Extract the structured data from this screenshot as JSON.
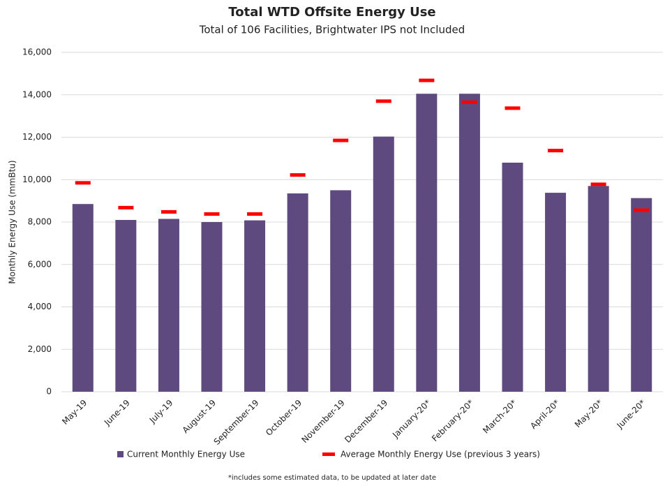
{
  "chart_data": {
    "type": "bar",
    "title": "Total WTD Offsite Energy Use",
    "subtitle": "Total of 106 Facilities, Brightwater IPS not Included",
    "y_label": "Monthly Energy Use (mmBtu)",
    "footnote": "*includes some estimated data, to be updated at later date",
    "categories": [
      "May-19",
      "June-19",
      "July-19",
      "August-19",
      "September-19",
      "October-19",
      "November-19",
      "December-19",
      "January-20*",
      "February-20*",
      "March-20*",
      "April-20*",
      "May-20*",
      "June-20*"
    ],
    "series": [
      {
        "name": "Current Monthly Energy Use",
        "color": "#5e4a7e",
        "marker": "bar",
        "values": [
          8850,
          8100,
          8150,
          8000,
          8080,
          9350,
          9500,
          12030,
          14050,
          14050,
          10800,
          9380,
          9700,
          9130
        ]
      },
      {
        "name": "Average Monthly Energy Use (previous 3 years)",
        "color": "#ff0000",
        "marker": "dash",
        "values": [
          9850,
          8680,
          8480,
          8380,
          8380,
          10220,
          11850,
          13700,
          14680,
          13650,
          13370,
          11370,
          9780,
          8560
        ]
      }
    ],
    "ylim": [
      0,
      16000
    ],
    "yticks": [
      0,
      {
        "value": 2000,
        "label": "2,000"
      },
      {
        "value": 4000,
        "label": "4,000"
      },
      {
        "value": 6000,
        "label": "6,000"
      },
      {
        "value": 8000,
        "label": "8,000"
      },
      {
        "value": 10000,
        "label": "10,000"
      },
      {
        "value": 12000,
        "label": "12,000"
      },
      {
        "value": 14000,
        "label": "14,000"
      },
      {
        "value": 16000,
        "label": "16,000"
      }
    ],
    "grid": true
  }
}
